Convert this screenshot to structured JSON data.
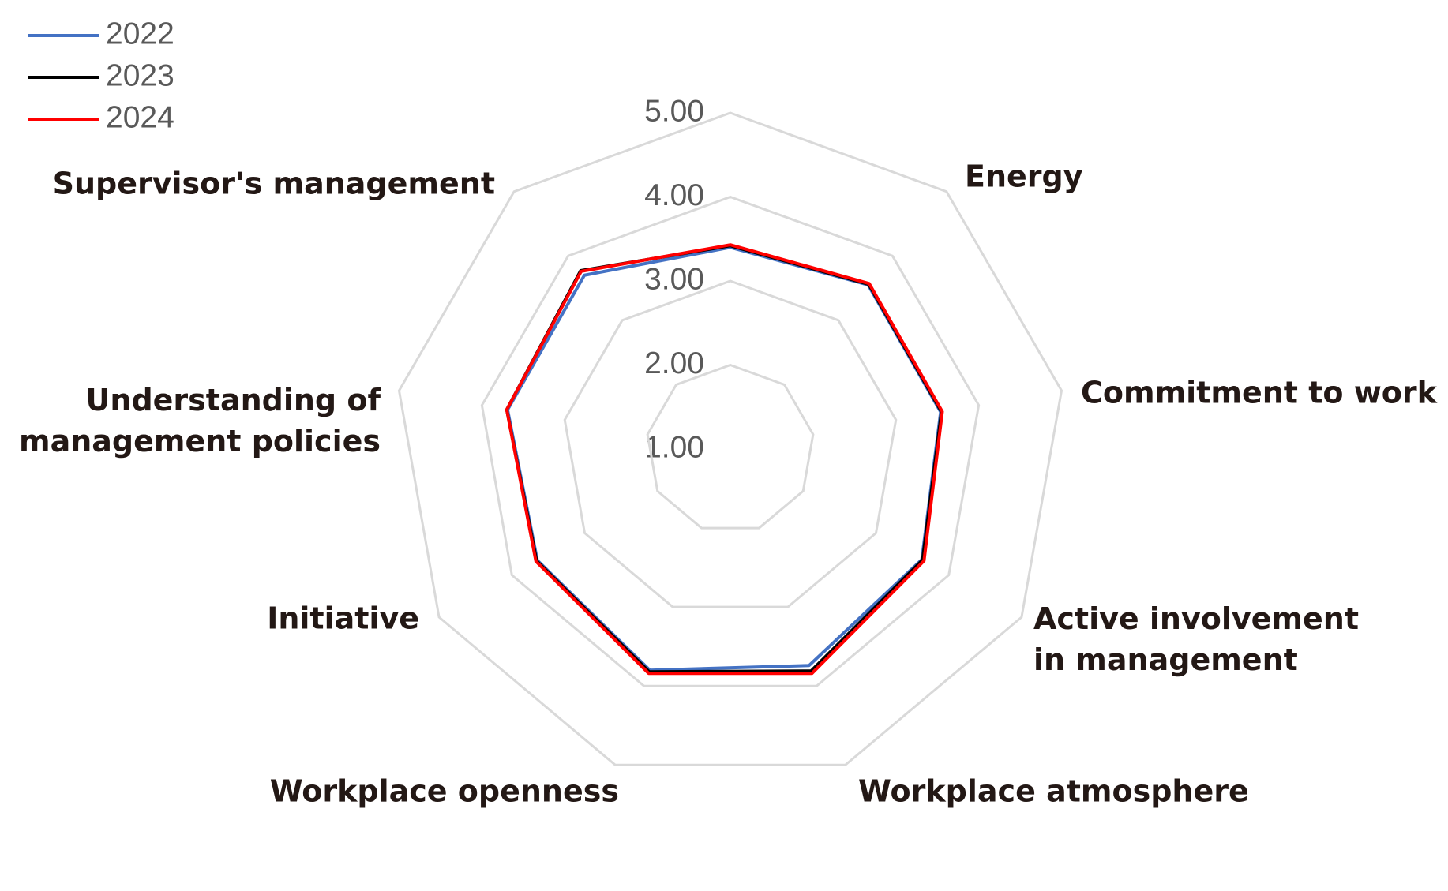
{
  "chart_data": {
    "type": "radar",
    "categories": [
      null,
      "Energy",
      "Commitment to work",
      "Active involvement\nin management",
      "Workplace atmosphere",
      "Workplace openness",
      "Initiative",
      "Understanding of\nmanagement policies",
      "Supervisor's management"
    ],
    "series": [
      {
        "name": "2022",
        "color": "#4472c4",
        "values": [
          3.4,
          3.55,
          3.54,
          3.63,
          3.74,
          3.8,
          3.65,
          3.69,
          3.7
        ]
      },
      {
        "name": "2023",
        "color": "#000000",
        "values": [
          3.42,
          3.56,
          3.55,
          3.64,
          3.81,
          3.82,
          3.66,
          3.7,
          3.77
        ]
      },
      {
        "name": "2024",
        "color": "#ff0000",
        "values": [
          3.43,
          3.57,
          3.56,
          3.66,
          3.84,
          3.84,
          3.67,
          3.7,
          3.76
        ]
      }
    ],
    "ylim": [
      1,
      5
    ],
    "yticks": [
      {
        "value": 1,
        "label": "1.00"
      },
      {
        "value": 2,
        "label": "2.00"
      },
      {
        "value": 3,
        "label": "3.00"
      },
      {
        "value": 4,
        "label": "4.00"
      },
      {
        "value": 5,
        "label": "5.00"
      }
    ],
    "grid": true,
    "legend": "top-left"
  }
}
